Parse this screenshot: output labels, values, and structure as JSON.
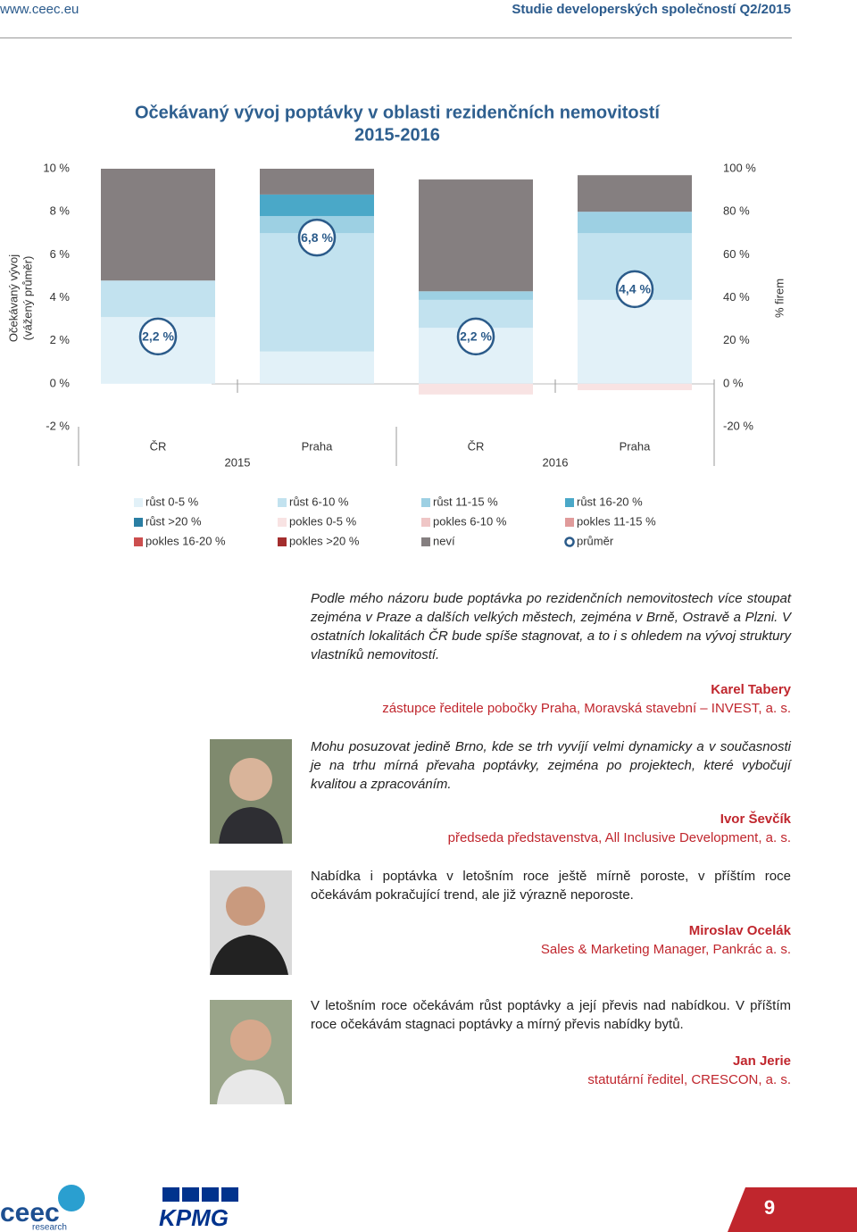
{
  "header": {
    "site": "www.ceec.eu",
    "study": "Studie developerských společností Q2/2015"
  },
  "chart_data": {
    "type": "bar",
    "stacked": true,
    "title": "Očekávaný vývoj poptávky v oblasti rezidenčních nemovitostí",
    "subtitle": "2015-2016",
    "ylabel": [
      "Očekávaný vývoj",
      "(vážený průměr)"
    ],
    "y2label": "% firem",
    "categories": [
      "ČR",
      "Praha",
      "ČR",
      "Praha"
    ],
    "groups": [
      "2015",
      "2016"
    ],
    "ylim": [
      -2,
      10
    ],
    "yticks": [
      {
        "value": -2,
        "label": "-2 %"
      },
      {
        "value": 0,
        "label": "0 %"
      },
      {
        "value": 2,
        "label": "2 %"
      },
      {
        "value": 4,
        "label": "4 %"
      },
      {
        "value": 6,
        "label": "6 %"
      },
      {
        "value": 8,
        "label": "8 %"
      },
      {
        "value": 10,
        "label": "10 %"
      }
    ],
    "y2lim": [
      -20,
      100
    ],
    "y2ticks": [
      {
        "value": -20,
        "label": "-20 %"
      },
      {
        "value": 0,
        "label": "0 %"
      },
      {
        "value": 20,
        "label": "20 %"
      },
      {
        "value": 40,
        "label": "40 %"
      },
      {
        "value": 60,
        "label": "60 %"
      },
      {
        "value": 80,
        "label": "80 %"
      },
      {
        "value": 100,
        "label": "100 %"
      }
    ],
    "series": [
      {
        "name": "růst 0-5 %",
        "color": "#e2f1f8",
        "axis": "y2",
        "values": [
          31,
          15,
          26,
          39
        ]
      },
      {
        "name": "růst 6-10 %",
        "color": "#c2e2ef",
        "axis": "y2",
        "values": [
          17,
          55,
          13,
          31
        ]
      },
      {
        "name": "růst 11-15 %",
        "color": "#9dd0e3",
        "axis": "y2",
        "values": [
          0,
          8,
          4,
          10
        ]
      },
      {
        "name": "růst 16-20 %",
        "color": "#4aa8c8",
        "axis": "y2",
        "values": [
          0,
          10,
          0,
          0
        ]
      },
      {
        "name": "růst >20 %",
        "color": "#2a7ea3",
        "axis": "y2",
        "values": [
          0,
          0,
          0,
          0
        ]
      },
      {
        "name": "pokles 0-5 %",
        "color": "#f8e3e3",
        "axis": "y2",
        "values": [
          0,
          0,
          -5,
          -3
        ]
      },
      {
        "name": "pokles 6-10 %",
        "color": "#efc6c6",
        "axis": "y2",
        "values": [
          0,
          0,
          0,
          0
        ]
      },
      {
        "name": "pokles 11-15 %",
        "color": "#e09b9b",
        "axis": "y2",
        "values": [
          0,
          0,
          0,
          0
        ]
      },
      {
        "name": "pokles 16-20 %",
        "color": "#cc4e4e",
        "axis": "y2",
        "values": [
          0,
          0,
          0,
          0
        ]
      },
      {
        "name": "pokles >20 %",
        "color": "#a32d2d",
        "axis": "y2",
        "values": [
          0,
          0,
          0,
          0
        ]
      },
      {
        "name": "neví",
        "color": "#857f80",
        "axis": "y2",
        "values": [
          52,
          12,
          52,
          17
        ]
      }
    ],
    "average": {
      "name": "průměr",
      "color": "#2b5b8a",
      "values": [
        2.2,
        6.8,
        2.2,
        4.4
      ],
      "value_labels": [
        "2,2 %",
        "6,8 %",
        "2,2 %",
        "4,4 %"
      ]
    }
  },
  "quotes": [
    {
      "text": "Podle mého názoru bude poptávka po rezidenčních nemovitostech více stoupat zejména v Praze a dalších velkých městech, zejména v Brně, Ostravě a Plzni. V ostatních lokalitách ČR bude spíše stagnovat, a to i s ohledem na vývoj struktury vlastníků nemovitostí.",
      "name": "Karel Tabery",
      "role": "zástupce ředitele pobočky Praha, Moravská stavební – INVEST, a. s."
    },
    {
      "text": "Mohu posuzovat jedině Brno, kde se trh vyvíjí velmi dynamicky a v současnosti je na trhu mírná převaha poptávky, zejména po projektech, které vybočují kvalitou a zpracováním.",
      "name": "Ivor Ševčík",
      "role": "předseda představenstva, All Inclusive Development, a. s."
    },
    {
      "text": "Nabídka i poptávka v letošním roce ještě mírně poroste, v příštím roce očekávám pokračující trend, ale již výrazně neporoste.",
      "name": "Miroslav Ocelák",
      "role": "Sales & Marketing Manager, Pankrác a. s."
    },
    {
      "text": "V letošním roce očekávám růst poptávky a její převis nad nabídkou. V příštím roce očekávám stagnaci poptávky a mírný převis nabídky bytů.",
      "name": "Jan Jerie",
      "role": "statutární ředitel, CRESCON, a. s."
    }
  ],
  "footer": {
    "logo": "ceec",
    "logo_sub": "research",
    "partner": "KPMG",
    "page": "9"
  }
}
